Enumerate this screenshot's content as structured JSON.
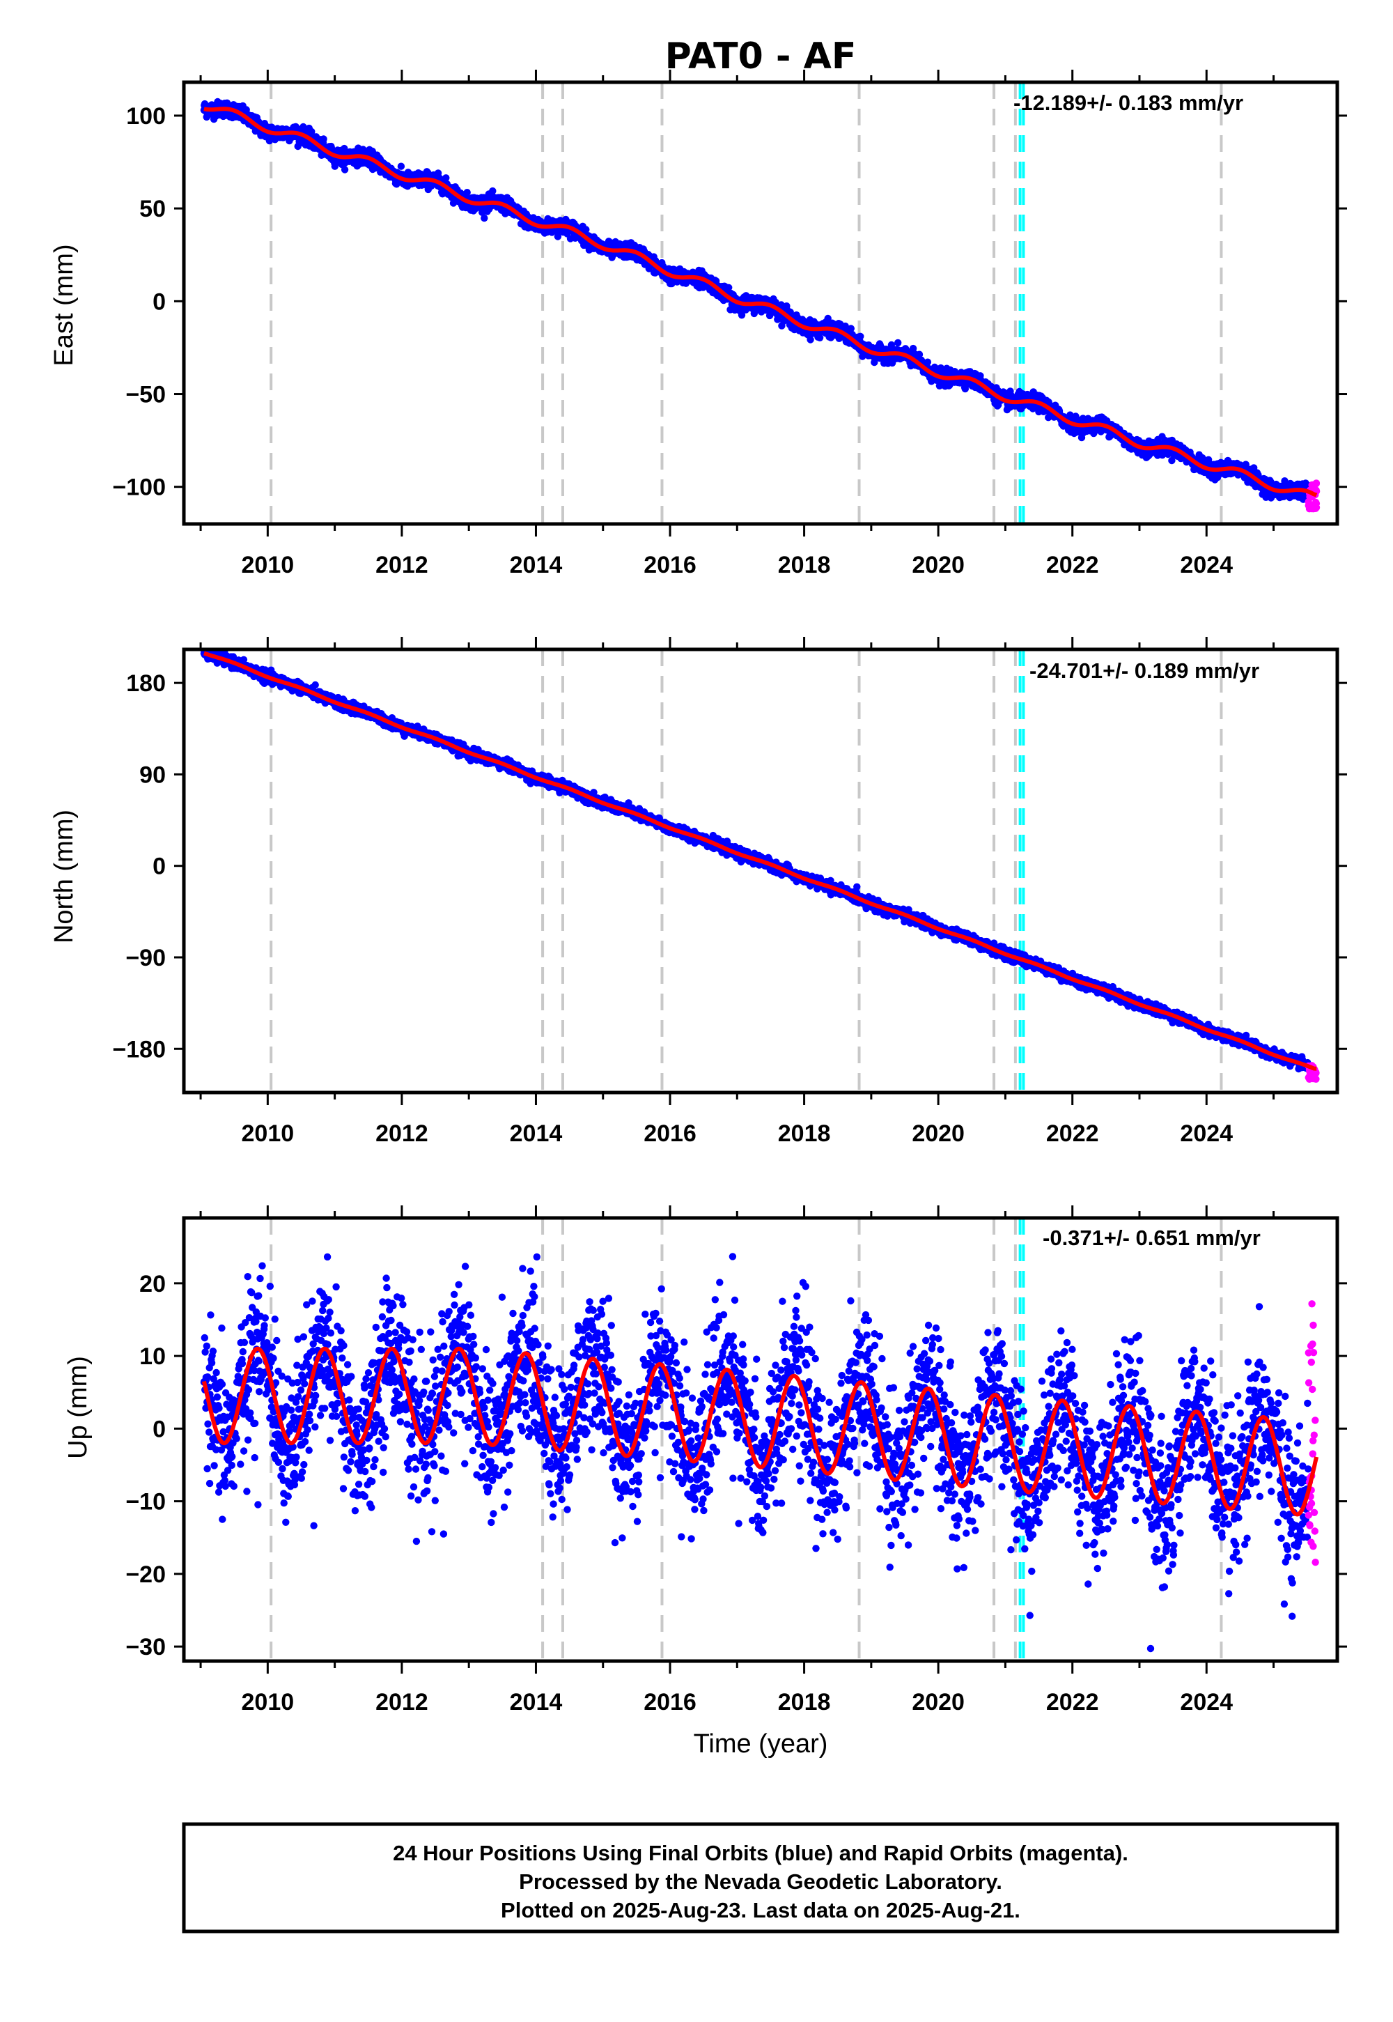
{
  "title": "PAT0 - AF",
  "colors": {
    "final_points": "#0000ff",
    "rapid_points": "#ff00ff",
    "model_line": "#ff0000",
    "step_lines": "#c8c8c8",
    "equipment_lines": "#00ffff",
    "frame": "#000000"
  },
  "footer": {
    "line1": "24 Hour Positions Using Final Orbits (blue) and Rapid Orbits (magenta).",
    "line2": "Processed by the Nevada Geodetic Laboratory.",
    "line3": "Plotted on 2025-Aug-23. Last data on 2025-Aug-21."
  },
  "chart_data": [
    {
      "type": "scatter",
      "component": "east",
      "ylabel": "East (mm)",
      "xlabel": "",
      "rate_label": "-12.189+/- 0.183 mm/yr",
      "rate_mm_per_yr": -12.189,
      "rate_sigma": 0.183,
      "xlim": [
        2008.75,
        2025.95
      ],
      "ylim": [
        -120,
        118
      ],
      "xticks": [
        2010,
        2012,
        2014,
        2016,
        2018,
        2020,
        2022,
        2024
      ],
      "xtick_labels": [
        "2010",
        "2012",
        "2014",
        "2016",
        "2018",
        "2020",
        "2022",
        "2024"
      ],
      "yticks": [
        100,
        50,
        0,
        -50,
        -100
      ],
      "ytick_labels": [
        "100",
        "50",
        "0",
        "−50",
        "−100"
      ],
      "model_knots": {
        "x": [
          2009.05,
          2011.0,
          2013.0,
          2015.0,
          2017.0,
          2019.0,
          2021.0,
          2023.0,
          2025.6
        ],
        "y": [
          106,
          81,
          56,
          31,
          2,
          -25,
          -51,
          -76,
          -106
        ]
      },
      "seasonal_amplitude_mm": 2.5,
      "scatter_sigma_mm": 2.0,
      "rapid_points": {
        "x_start": 2025.52,
        "x_end": 2025.64,
        "y_min": -112,
        "y_max": -98
      }
    },
    {
      "type": "scatter",
      "component": "north",
      "ylabel": "North (mm)",
      "xlabel": "",
      "rate_label": "-24.701+/- 0.189 mm/yr",
      "rate_mm_per_yr": -24.701,
      "rate_sigma": 0.189,
      "xlim": [
        2008.75,
        2025.95
      ],
      "ylim": [
        -223,
        213
      ],
      "xticks": [
        2010,
        2012,
        2014,
        2016,
        2018,
        2020,
        2022,
        2024
      ],
      "xtick_labels": [
        "2010",
        "2012",
        "2014",
        "2016",
        "2018",
        "2020",
        "2022",
        "2024"
      ],
      "yticks": [
        180,
        90,
        0,
        -90,
        -180
      ],
      "ytick_labels": [
        "180",
        "90",
        "0",
        "−90",
        "−180"
      ],
      "model_knots": {
        "x": [
          2009.05,
          2025.6
        ],
        "y": [
          210,
          -200
        ]
      },
      "seasonal_amplitude_mm": 0.8,
      "scatter_sigma_mm": 2.5,
      "rapid_points": {
        "x_start": 2025.52,
        "x_end": 2025.64,
        "y_min": -210,
        "y_max": -196
      }
    },
    {
      "type": "scatter",
      "component": "up",
      "ylabel": "Up (mm)",
      "xlabel": "Time (year)",
      "rate_label": "-0.371+/- 0.651 mm/yr",
      "rate_mm_per_yr": -0.371,
      "rate_sigma": 0.651,
      "xlim": [
        2008.75,
        2025.95
      ],
      "ylim": [
        -32,
        29
      ],
      "xticks": [
        2010,
        2012,
        2014,
        2016,
        2018,
        2020,
        2022,
        2024
      ],
      "xtick_labels": [
        "2010",
        "2012",
        "2014",
        "2016",
        "2018",
        "2020",
        "2022",
        "2024"
      ],
      "yticks": [
        20,
        10,
        0,
        -10,
        -20,
        -30
      ],
      "ytick_labels": [
        "20",
        "10",
        "0",
        "−10",
        "−20",
        "−30"
      ],
      "model_knots": {
        "x": [
          2009.05,
          2013.0,
          2017.0,
          2021.0,
          2025.6
        ],
        "y": [
          4.5,
          4.5,
          1.5,
          -2.0,
          -5.5
        ]
      },
      "seasonal_amplitude_mm": 6.5,
      "seasonal_phase_year": 0.6,
      "scatter_sigma_mm": 5.0,
      "rapid_points": {
        "x_start": 2025.52,
        "x_end": 2025.64,
        "y_min": -19,
        "y_max": 18
      }
    }
  ],
  "step_epochs": [
    2010.05,
    2014.1,
    2014.4,
    2015.88,
    2018.82,
    2020.83,
    2021.15
  ],
  "equipment_change_epochs": [
    2021.22,
    2021.27
  ],
  "extra_step_epochs": [
    2024.22
  ],
  "data_span": [
    2009.05,
    2025.64
  ]
}
